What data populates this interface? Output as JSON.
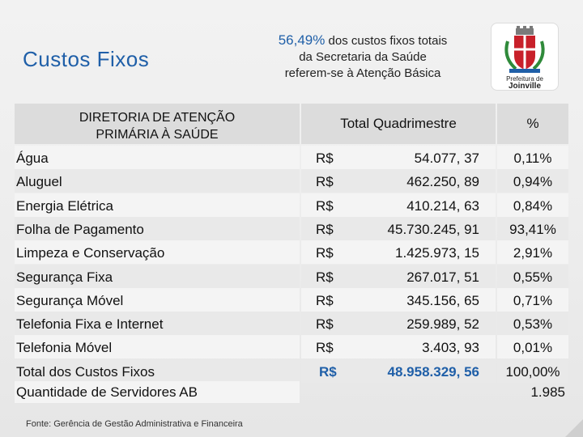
{
  "title": "Custos Fixos",
  "note": {
    "percent": "56,49%",
    "line1_rest": " dos custos fixos totais",
    "line2": "da Secretaria da Saúde",
    "line3": "referem-se à Atenção Básica"
  },
  "logo": {
    "line1": "Prefeitura de",
    "line2": "Joinville"
  },
  "table": {
    "header_dir_line1": "DIRETORIA DE ATENÇÃO",
    "header_dir_line2": "PRIMÁRIA À SAÚDE",
    "header_total": "Total Quadrimestre",
    "header_pct": "%",
    "rows": [
      {
        "label": "Água",
        "currency": "R$",
        "amount": "54.077, 37",
        "pct": "0,11%"
      },
      {
        "label": "Aluguel",
        "currency": "R$",
        "amount": "462.250, 89",
        "pct": "0,94%"
      },
      {
        "label": "Energia Elétrica",
        "currency": "R$",
        "amount": "410.214, 63",
        "pct": "0,84%"
      },
      {
        "label": "Folha de Pagamento",
        "currency": "R$",
        "amount": "45.730.245, 91",
        "pct": "93,41%"
      },
      {
        "label": "Limpeza e Conservação",
        "currency": "R$",
        "amount": "1.425.973, 15",
        "pct": "2,91%"
      },
      {
        "label": "Segurança Fixa",
        "currency": "R$",
        "amount": "267.017, 51",
        "pct": "0,55%"
      },
      {
        "label": "Segurança Móvel",
        "currency": "R$",
        "amount": "345.156, 65",
        "pct": "0,71%"
      },
      {
        "label": "Telefonia Fixa e Internet",
        "currency": "R$",
        "amount": "259.989, 52",
        "pct": "0,53%"
      },
      {
        "label": "Telefonia Móvel",
        "currency": "R$",
        "amount": "3.403, 93",
        "pct": "0,01%"
      },
      {
        "label": "Total dos Custos Fixos",
        "currency": "R$",
        "amount": "48.958.329, 56",
        "pct": "100,00%"
      }
    ],
    "servers_label": "Quantidade de Servidores AB",
    "servers_value": "1.985"
  },
  "source": "Fonte: Gerência de Gestão Administrativa e Financeira",
  "colors": {
    "accent": "#1f5fa8"
  }
}
